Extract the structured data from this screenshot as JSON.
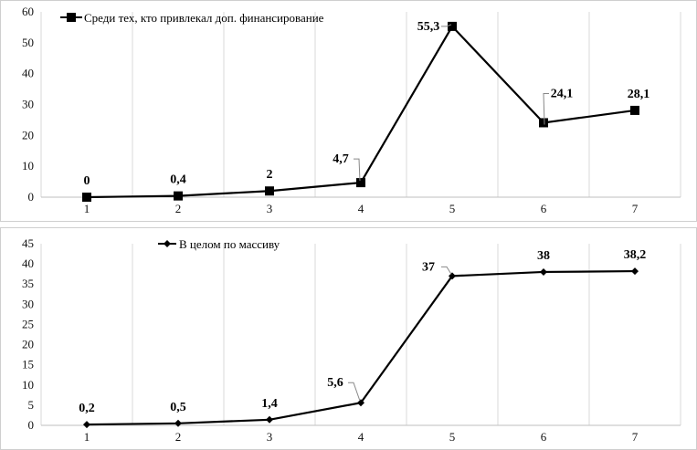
{
  "chart_data": [
    {
      "type": "line",
      "categories": [
        "1",
        "2",
        "3",
        "4",
        "5",
        "6",
        "7"
      ],
      "series": [
        {
          "name": "Среди тех, кто привлекал доп. финансирование",
          "values": [
            0,
            0.4,
            2,
            4.7,
            55.3,
            24.1,
            28.1
          ],
          "marker": "square",
          "color": "#000000"
        }
      ],
      "data_labels": [
        "0",
        "0,4",
        "2",
        "4,7",
        "55,3",
        "24,1",
        "28,1"
      ],
      "ylim": [
        0,
        60
      ],
      "yticks": [
        "0",
        "10",
        "20",
        "30",
        "40",
        "50",
        "60"
      ],
      "grid": "vertical",
      "legend": "top-left"
    },
    {
      "type": "line",
      "categories": [
        "1",
        "2",
        "3",
        "4",
        "5",
        "6",
        "7"
      ],
      "series": [
        {
          "name": "В целом по массиву",
          "values": [
            0.2,
            0.5,
            1.4,
            5.6,
            37,
            38,
            38.2
          ],
          "marker": "diamond",
          "color": "#000000"
        }
      ],
      "data_labels": [
        "0,2",
        "0,5",
        "1,4",
        "5,6",
        "37",
        "38",
        "38,2"
      ],
      "ylim": [
        0,
        45
      ],
      "yticks": [
        "0",
        "5",
        "10",
        "15",
        "20",
        "25",
        "30",
        "35",
        "40",
        "45"
      ],
      "grid": "vertical",
      "legend": "top-left"
    }
  ]
}
